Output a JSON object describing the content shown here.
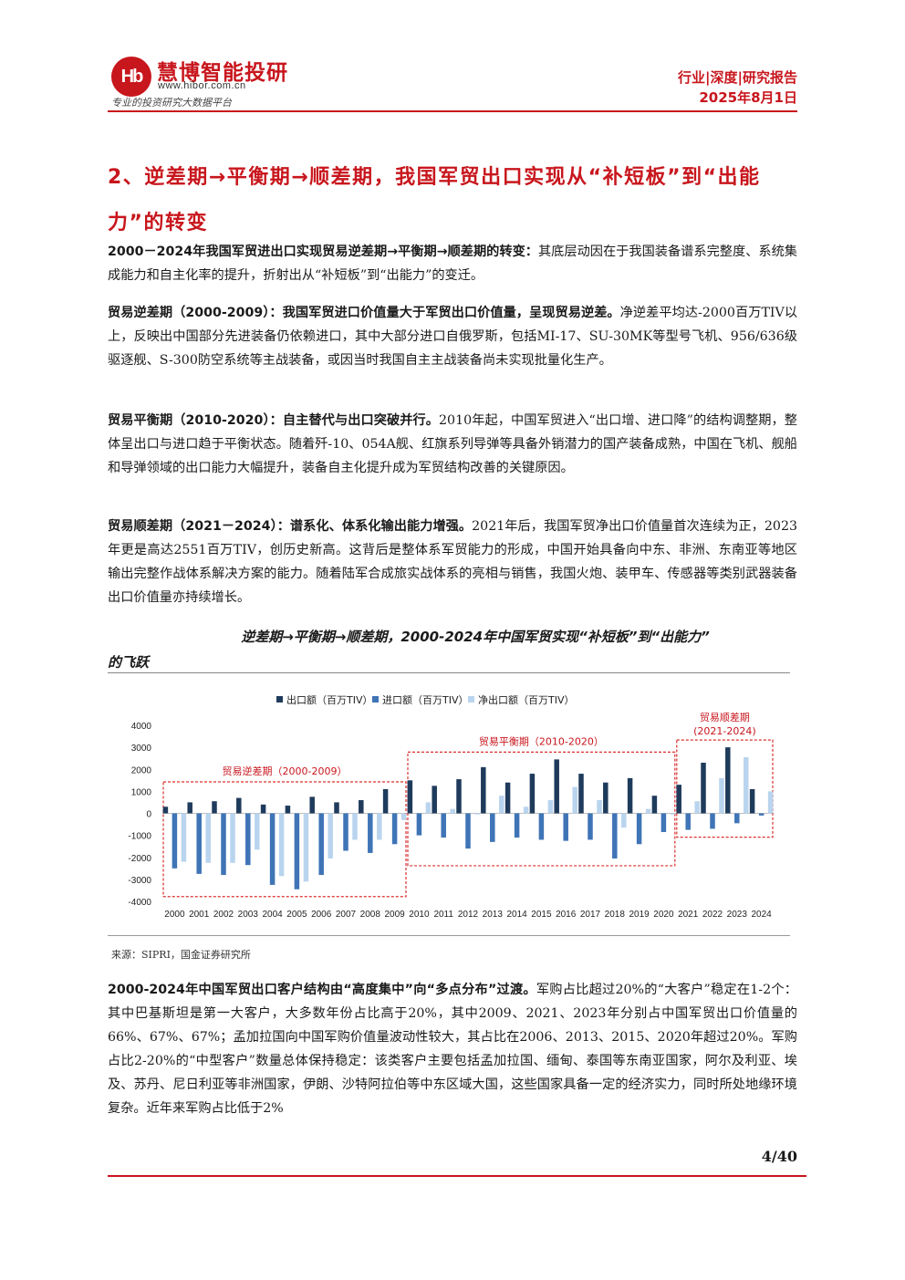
{
  "header": {
    "logo_mark": "Hb",
    "brand": "慧博智能投研",
    "url": "www.hibor.com.cn",
    "tagline": "专业的投资研究大数据平台",
    "report_type": "行业|深度|研究报告",
    "date": "2025年8月1日"
  },
  "section": {
    "title": "2、逆差期→平衡期→顺差期，我国军贸出口实现从“补短板”到“出能力”的转变"
  },
  "paragraphs": [
    {
      "bold": "2000－2024年我国军贸进出口实现贸易逆差期→平衡期→顺差期的转变：",
      "text": "其底层动因在于我国装备谱系完整度、系统集成能力和自主化率的提升，折射出从“补短板”到“出能力”的变迁。"
    },
    {
      "bold": "贸易逆差期（2000-2009）：我国军贸进口价值量大于军贸出口价值量，呈现贸易逆差。",
      "text": "净逆差平均达-2000百万TIV以上，反映出中国部分先进装备仍依赖进口，其中大部分进口自俄罗斯，包括MI-17、SU-30MK等型号飞机、956/636级驱逐舰、S-300防空系统等主战装备，或因当时我国自主主战装备尚未实现批量化生产。"
    },
    {
      "bold": "贸易平衡期（2010-2020）：自主替代与出口突破并行。",
      "text": "2010年起，中国军贸进入“出口增、进口降”的结构调整期，整体呈出口与进口趋于平衡状态。随着歼-10、054A舰、红旗系列导弹等具备外销潜力的国产装备成熟，中国在飞机、舰船和导弹领域的出口能力大幅提升，装备自主化提升成为军贸结构改善的关键原因。"
    },
    {
      "bold": "贸易顺差期（2021－2024）：谱系化、体系化输出能力增强。",
      "text": "2021年后，我国军贸净出口价值量首次连续为正，2023年更是高达2551百万TIV，创历史新高。这背后是整体系军贸能力的形成，中国开始具备向中东、非洲、东南亚等地区输出完整作战体系解决方案的能力。随着陆军合成旅实战体系的亮相与销售，我国火炮、装甲车、传感器等类别武器装备出口价值量亦持续增长。"
    },
    {
      "bold": "2000-2024年中国军贸出口客户结构由“高度集中”向“多点分布”过渡。",
      "text": "军购占比超过20%的“大客户”稳定在1-2个：其中巴基斯坦是第一大客户，大多数年份占比高于20%，其中2009、2021、2023年分别占中国军贸出口价值量的66%、67%、67%；孟加拉国向中国军购价值量波动性较大，其占比在2006、2013、2015、2020年超过20%。军购占比2-20%的“中型客户”数量总体保持稳定：该类客户主要包括孟加拉国、缅甸、泰国等东南亚国家，阿尔及利亚、埃及、苏丹、尼日利亚等非洲国家，伊朗、沙特阿拉伯等中东区域大国，这些国家具备一定的经济实力，同时所处地缘环境复杂。近年来军购占比低于2%"
    }
  ],
  "figure": {
    "caption_line1": "逆差期→平衡期→顺差期，2000-2024年中国军贸实现“补短板”到“出能力”",
    "caption_line2": "的飞跃",
    "source": "来源：SIPRI，国金证券研究所"
  },
  "chart_data": {
    "type": "bar",
    "categories": [
      "2000",
      "2001",
      "2002",
      "2003",
      "2004",
      "2005",
      "2006",
      "2007",
      "2008",
      "2009",
      "2010",
      "2011",
      "2012",
      "2013",
      "2014",
      "2015",
      "2016",
      "2017",
      "2018",
      "2019",
      "2020",
      "2021",
      "2022",
      "2023",
      "2024"
    ],
    "series": [
      {
        "name": "出口额（百万TIV）",
        "color": "#1f3b5c",
        "values": [
          300,
          500,
          550,
          700,
          400,
          350,
          750,
          500,
          600,
          1100,
          1500,
          1250,
          1550,
          2100,
          1400,
          1800,
          2450,
          1800,
          1400,
          1600,
          800,
          1300,
          2300,
          3000,
          1100
        ]
      },
      {
        "name": "进口额（百万TIV）",
        "color": "#3f74b6",
        "values": [
          -2500,
          -2750,
          -2800,
          -2350,
          -3250,
          -3450,
          -2800,
          -1700,
          -1800,
          -1400,
          -1000,
          -1100,
          -1600,
          -1300,
          -1100,
          -1200,
          -1250,
          -1200,
          -2050,
          -1400,
          -850,
          -750,
          -700,
          -450,
          -100
        ]
      },
      {
        "name": "净出口额（百万TIV）",
        "color": "#b9d4ee",
        "values": [
          -2200,
          -2250,
          -2250,
          -1650,
          -2850,
          -3100,
          -2050,
          -1200,
          -1200,
          -300,
          500,
          200,
          -50,
          800,
          300,
          600,
          1200,
          600,
          -650,
          200,
          -50,
          550,
          1600,
          2551,
          1000
        ]
      }
    ],
    "ylim": [
      -4000,
      4000
    ],
    "yticks": [
      -4000,
      -3000,
      -2000,
      -1000,
      0,
      1000,
      2000,
      3000,
      4000
    ],
    "legend": "top-center",
    "grid": false,
    "periods": [
      {
        "label": "贸易逆差期（2000-2009）",
        "from": 0,
        "to": 9
      },
      {
        "label": "贸易平衡期（2010-2020）",
        "from": 10,
        "to": 20
      },
      {
        "label": "贸易顺差期",
        "label2": "(2021-2024)",
        "from": 21,
        "to": 24
      }
    ]
  },
  "footer": {
    "page": "4/40"
  }
}
